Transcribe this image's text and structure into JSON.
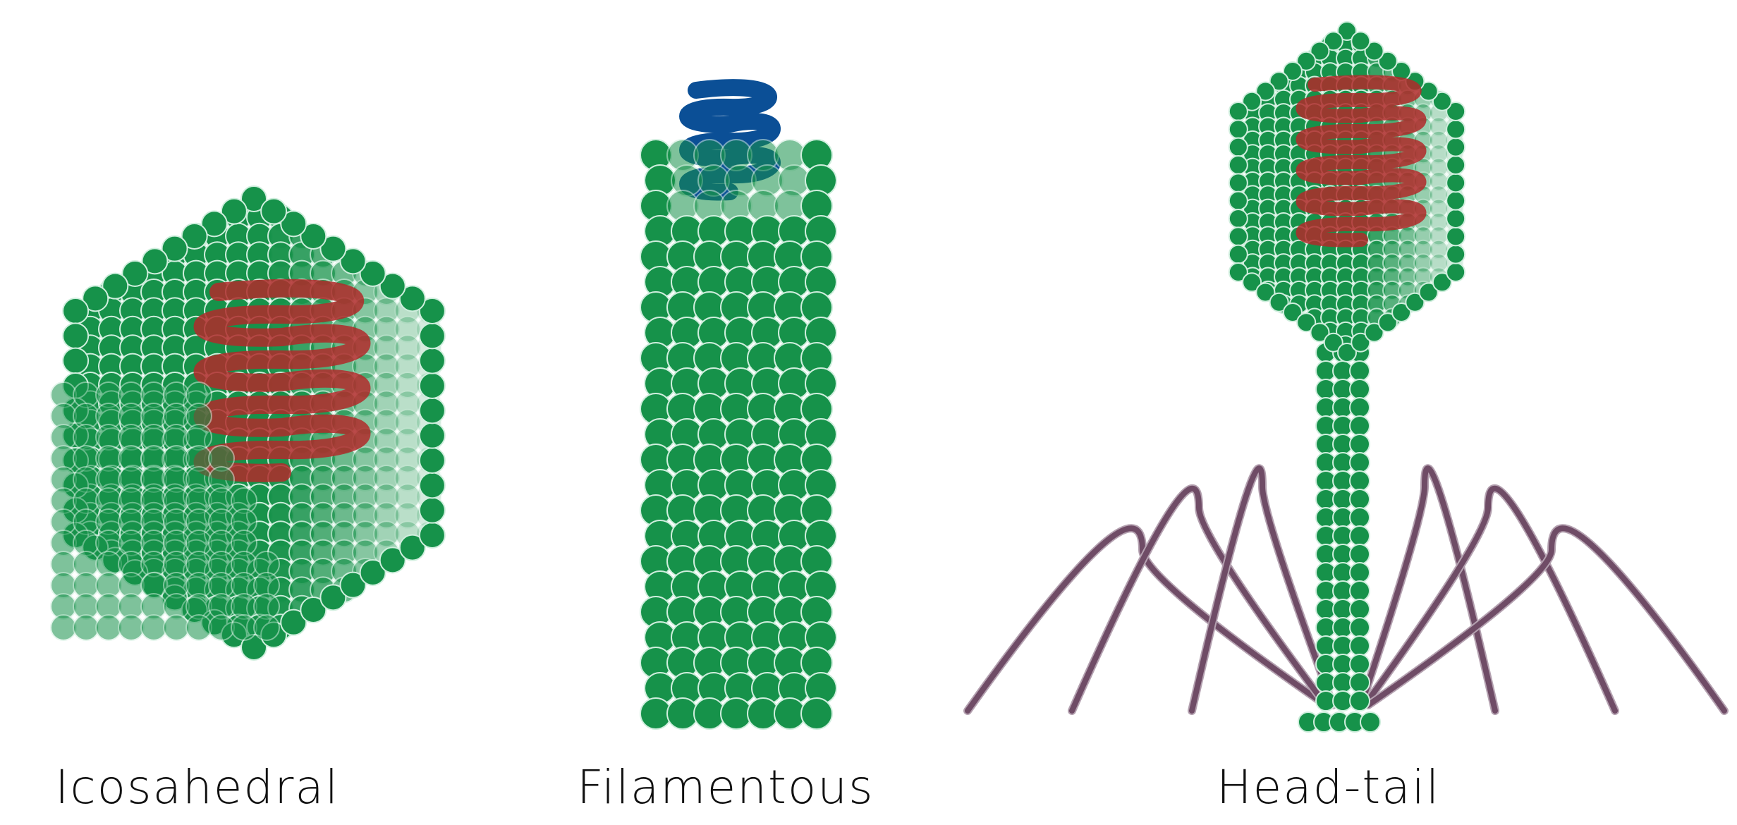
{
  "labels": {
    "icosahedral": "Icosahedral",
    "filamentous": "Filamentous",
    "head_tail": "Head-tail"
  },
  "colors": {
    "capsid": "#16924a",
    "capsid_edge": "#cfeedd",
    "genome_red": "#b02a2a",
    "genome_blue": "#0b4f96",
    "tail_fiber": "#6f4c66",
    "fiber_edge": "#b4a1b0"
  }
}
